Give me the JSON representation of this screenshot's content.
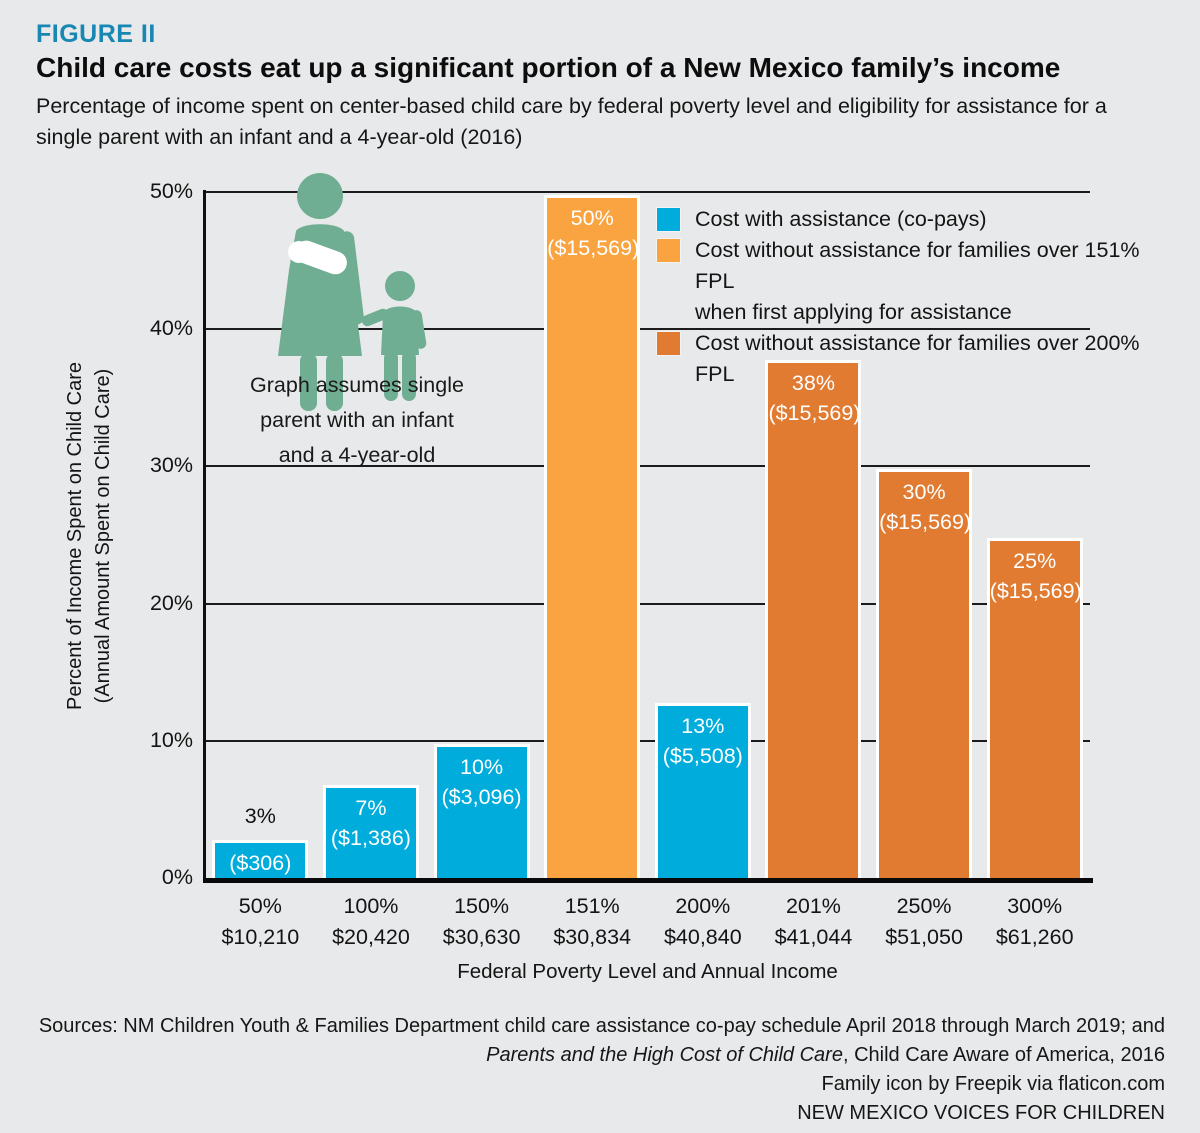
{
  "figure": {
    "label": "FIGURE II",
    "title": "Child care costs eat up a significant portion of a New Mexico family’s income",
    "subtitle_lines": [
      "Percentage of income spent on center-based child care by federal poverty level and eligibility for assistance for a",
      "single parent with an infant and a 4-year-old (2016)"
    ]
  },
  "annotation_lines": [
    "Graph assumes single",
    "parent with an infant",
    "and a 4-year-old"
  ],
  "legend": {
    "items": [
      {
        "lines": [
          "Cost with assistance (co-pays)"
        ]
      },
      {
        "lines": [
          "Cost without assistance for families over 151% FPL",
          "when first applying for assistance"
        ]
      },
      {
        "lines": [
          "Cost without assistance for families over 200% FPL"
        ]
      }
    ]
  },
  "chart_data": {
    "type": "bar",
    "title": "Child care costs eat up a significant portion of a New Mexico family’s income",
    "subtitle": "Percentage of income spent on center-based child care by federal poverty level and eligibility for assistance for a single parent with an infant and a 4-year-old (2016)",
    "xlabel": "Federal Poverty Level and Annual Income",
    "ylabel_lines": [
      "Percent of Income Spent on Child Care",
      "(Annual Amount Spent on Child Care)"
    ],
    "ylim": [
      0,
      50
    ],
    "ytick_step": 10,
    "ytick_labels": [
      "0%",
      "10%",
      "20%",
      "30%",
      "40%",
      "50%"
    ],
    "grid": true,
    "legend_position": "upper right",
    "background_color": "#E8E9EA",
    "series": [
      {
        "name": "Cost with assistance (co-pays)",
        "color": "#00ACDB"
      },
      {
        "name": "Cost without assistance for families over 151% FPL when first applying for assistance",
        "color": "#F9A440"
      },
      {
        "name": "Cost without assistance for families over 200% FPL",
        "color": "#E07B31"
      }
    ],
    "bars": [
      {
        "fpl": "50%",
        "income": "$10,210",
        "value": 3,
        "pct_label": "3%",
        "amount_label": "($306)",
        "series": 0,
        "pct_label_outside": true
      },
      {
        "fpl": "100%",
        "income": "$20,420",
        "value": 7,
        "pct_label": "7%",
        "amount_label": "($1,386)",
        "series": 0
      },
      {
        "fpl": "150%",
        "income": "$30,630",
        "value": 10,
        "pct_label": "10%",
        "amount_label": "($3,096)",
        "series": 0
      },
      {
        "fpl": "151%",
        "income": "$30,834",
        "value": 50,
        "pct_label": "50%",
        "amount_label": "($15,569)",
        "series": 1
      },
      {
        "fpl": "200%",
        "income": "$40,840",
        "value": 13,
        "pct_label": "13%",
        "amount_label": "($5,508)",
        "series": 0
      },
      {
        "fpl": "201%",
        "income": "$41,044",
        "value": 38,
        "pct_label": "38%",
        "amount_label": "($15,569)",
        "series": 2
      },
      {
        "fpl": "250%",
        "income": "$51,050",
        "value": 30,
        "pct_label": "30%",
        "amount_label": "($15,569)",
        "series": 2
      },
      {
        "fpl": "300%",
        "income": "$61,260",
        "value": 25,
        "pct_label": "25%",
        "amount_label": "($15,569)",
        "series": 2
      }
    ]
  },
  "footer": {
    "line1": "Sources: NM Children Youth & Families Department child care assistance co-pay schedule April 2018 through March 2019; and",
    "line2_italic": "Parents and the High Cost of Child Care",
    "line2_rest": ", Child Care Aware of America, 2016",
    "line3": "Family icon by Freepik via flaticon.com",
    "line4": "NEW MEXICO VOICES FOR CHILDREN"
  }
}
